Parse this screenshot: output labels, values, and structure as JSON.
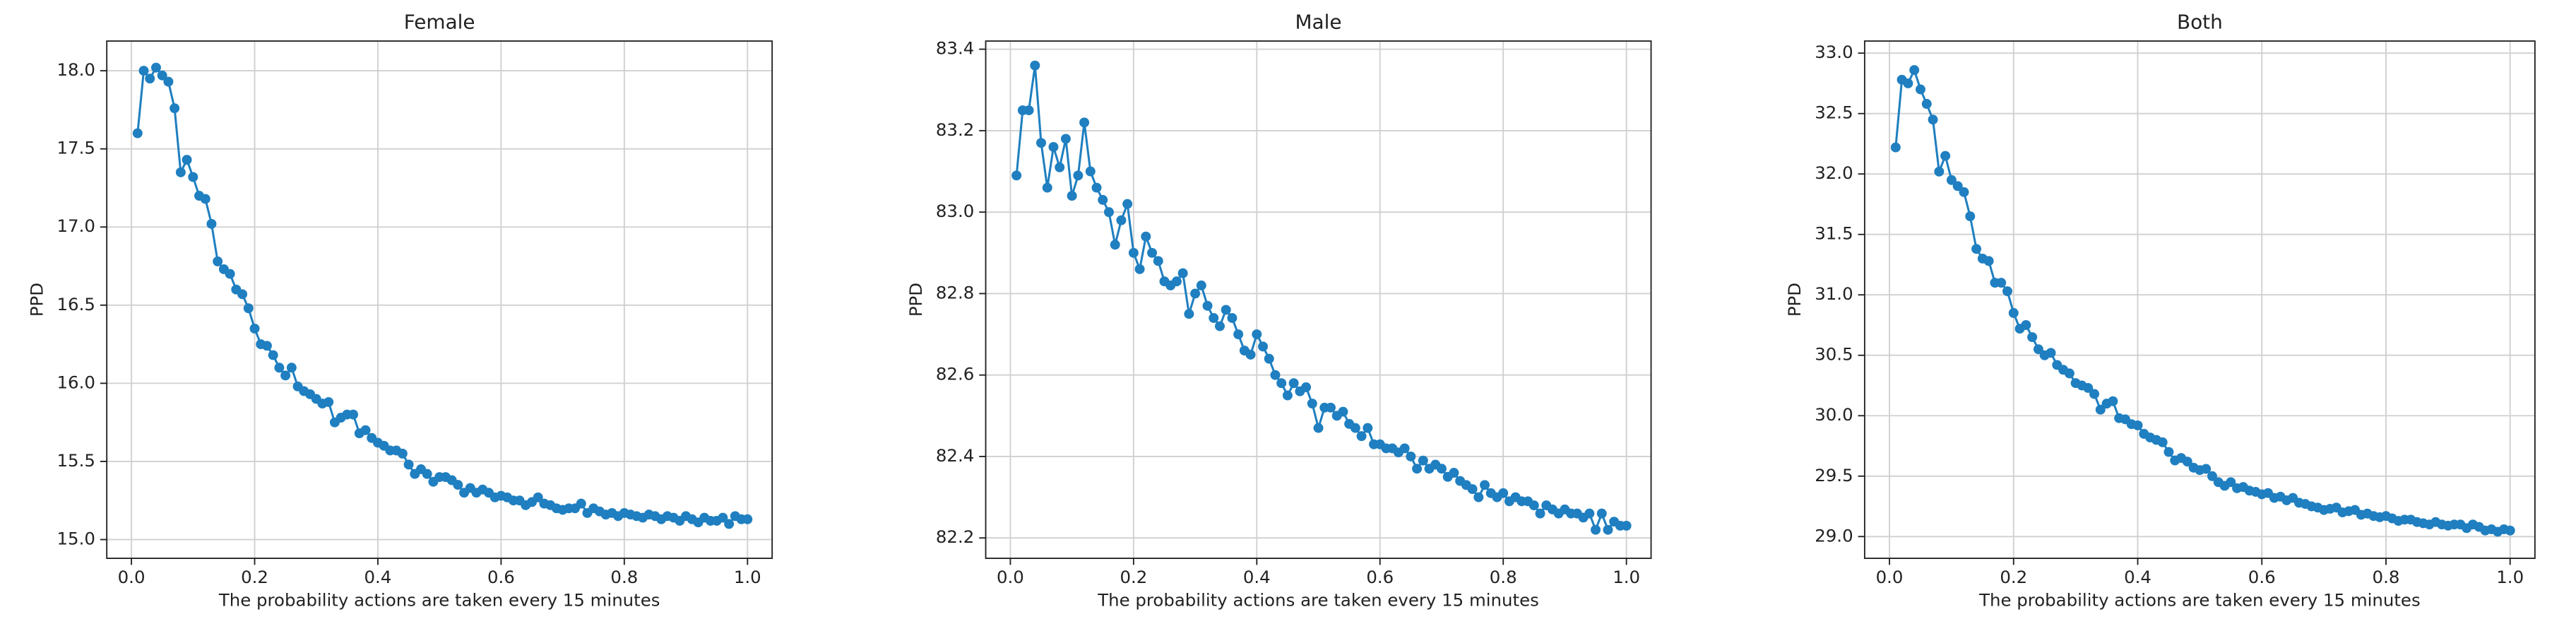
{
  "chart_data": [
    {
      "type": "line",
      "title": "Female",
      "x_label": "The probability actions are taken every 15 minutes",
      "y_label": "PPD",
      "color": "#1f7fc0",
      "grid": true,
      "x": [
        0.01,
        0.02,
        0.03,
        0.04,
        0.05,
        0.06,
        0.07,
        0.08,
        0.09,
        0.1,
        0.11,
        0.12,
        0.13,
        0.14,
        0.15,
        0.16,
        0.17,
        0.18,
        0.19,
        0.2,
        0.21,
        0.22,
        0.23,
        0.24,
        0.25,
        0.26,
        0.27,
        0.28,
        0.29,
        0.3,
        0.31,
        0.32,
        0.33,
        0.34,
        0.35,
        0.36,
        0.37,
        0.38,
        0.39,
        0.4,
        0.41,
        0.42,
        0.43,
        0.44,
        0.45,
        0.46,
        0.47,
        0.48,
        0.49,
        0.5,
        0.51,
        0.52,
        0.53,
        0.54,
        0.55,
        0.56,
        0.57,
        0.58,
        0.59,
        0.6,
        0.61,
        0.62,
        0.63,
        0.64,
        0.65,
        0.66,
        0.67,
        0.68,
        0.69,
        0.7,
        0.71,
        0.72,
        0.73,
        0.74,
        0.75,
        0.76,
        0.77,
        0.78,
        0.79,
        0.8,
        0.81,
        0.82,
        0.83,
        0.84,
        0.85,
        0.86,
        0.87,
        0.88,
        0.89,
        0.9,
        0.91,
        0.92,
        0.93,
        0.94,
        0.95,
        0.96,
        0.97,
        0.98,
        0.99,
        1.0
      ],
      "values": [
        17.6,
        18.0,
        17.95,
        18.02,
        17.97,
        17.93,
        17.76,
        17.35,
        17.43,
        17.32,
        17.2,
        17.18,
        17.02,
        16.78,
        16.73,
        16.7,
        16.6,
        16.57,
        16.48,
        16.35,
        16.25,
        16.24,
        16.18,
        16.1,
        16.05,
        16.1,
        15.98,
        15.95,
        15.93,
        15.9,
        15.87,
        15.88,
        15.75,
        15.78,
        15.8,
        15.8,
        15.68,
        15.7,
        15.65,
        15.62,
        15.6,
        15.57,
        15.57,
        15.55,
        15.48,
        15.42,
        15.45,
        15.42,
        15.37,
        15.4,
        15.4,
        15.38,
        15.35,
        15.3,
        15.33,
        15.3,
        15.32,
        15.3,
        15.27,
        15.28,
        15.27,
        15.25,
        15.25,
        15.22,
        15.24,
        15.27,
        15.23,
        15.22,
        15.2,
        15.19,
        15.2,
        15.2,
        15.23,
        15.17,
        15.2,
        15.18,
        15.16,
        15.17,
        15.15,
        15.17,
        15.16,
        15.15,
        15.14,
        15.16,
        15.15,
        15.13,
        15.15,
        15.14,
        15.12,
        15.15,
        15.13,
        15.11,
        15.14,
        15.12,
        15.12,
        15.14,
        15.1,
        15.15,
        15.13,
        15.13
      ],
      "xlim": [
        -0.04,
        1.04
      ],
      "xticks": [
        {
          "value": 0,
          "label": "0.0"
        },
        0.2,
        0.4,
        0.6,
        0.8,
        {
          "value": 1,
          "label": "1.0"
        }
      ],
      "ylim": [
        14.88,
        18.19
      ],
      "yticks": [
        {
          "value": 15,
          "label": "15.0"
        },
        15.5,
        {
          "value": 16,
          "label": "16.0"
        },
        16.5,
        {
          "value": 17,
          "label": "17.0"
        },
        17.5,
        {
          "value": 18,
          "label": "18.0"
        }
      ]
    },
    {
      "type": "line",
      "title": "Male",
      "x_label": "The probability actions are taken every 15 minutes",
      "y_label": "PPD",
      "color": "#1f7fc0",
      "grid": true,
      "x": [
        0.01,
        0.02,
        0.03,
        0.04,
        0.05,
        0.06,
        0.07,
        0.08,
        0.09,
        0.1,
        0.11,
        0.12,
        0.13,
        0.14,
        0.15,
        0.16,
        0.17,
        0.18,
        0.19,
        0.2,
        0.21,
        0.22,
        0.23,
        0.24,
        0.25,
        0.26,
        0.27,
        0.28,
        0.29,
        0.3,
        0.31,
        0.32,
        0.33,
        0.34,
        0.35,
        0.36,
        0.37,
        0.38,
        0.39,
        0.4,
        0.41,
        0.42,
        0.43,
        0.44,
        0.45,
        0.46,
        0.47,
        0.48,
        0.49,
        0.5,
        0.51,
        0.52,
        0.53,
        0.54,
        0.55,
        0.56,
        0.57,
        0.58,
        0.59,
        0.6,
        0.61,
        0.62,
        0.63,
        0.64,
        0.65,
        0.66,
        0.67,
        0.68,
        0.69,
        0.7,
        0.71,
        0.72,
        0.73,
        0.74,
        0.75,
        0.76,
        0.77,
        0.78,
        0.79,
        0.8,
        0.81,
        0.82,
        0.83,
        0.84,
        0.85,
        0.86,
        0.87,
        0.88,
        0.89,
        0.9,
        0.91,
        0.92,
        0.93,
        0.94,
        0.95,
        0.96,
        0.97,
        0.98,
        0.99,
        1.0
      ],
      "values": [
        83.09,
        83.25,
        83.25,
        83.36,
        83.17,
        83.06,
        83.16,
        83.11,
        83.18,
        83.04,
        83.09,
        83.22,
        83.1,
        83.06,
        83.03,
        83.0,
        82.92,
        82.98,
        83.02,
        82.9,
        82.86,
        82.94,
        82.9,
        82.88,
        82.83,
        82.82,
        82.83,
        82.85,
        82.75,
        82.8,
        82.82,
        82.77,
        82.74,
        82.72,
        82.76,
        82.74,
        82.7,
        82.66,
        82.65,
        82.7,
        82.67,
        82.64,
        82.6,
        82.58,
        82.55,
        82.58,
        82.56,
        82.57,
        82.53,
        82.47,
        82.52,
        82.52,
        82.5,
        82.51,
        82.48,
        82.47,
        82.45,
        82.47,
        82.43,
        82.43,
        82.42,
        82.42,
        82.41,
        82.42,
        82.4,
        82.37,
        82.39,
        82.37,
        82.38,
        82.37,
        82.35,
        82.36,
        82.34,
        82.33,
        82.32,
        82.3,
        82.33,
        82.31,
        82.3,
        82.31,
        82.29,
        82.3,
        82.29,
        82.29,
        82.28,
        82.26,
        82.28,
        82.27,
        82.26,
        82.27,
        82.26,
        82.26,
        82.25,
        82.26,
        82.22,
        82.26,
        82.22,
        82.24,
        82.23,
        82.23
      ],
      "xlim": [
        -0.04,
        1.04
      ],
      "xticks": [
        {
          "value": 0,
          "label": "0.0"
        },
        0.2,
        0.4,
        0.6,
        0.8,
        {
          "value": 1,
          "label": "1.0"
        }
      ],
      "ylim": [
        82.15,
        83.42
      ],
      "yticks": [
        82.2,
        82.4,
        82.6,
        82.8,
        {
          "value": 83,
          "label": "83.0"
        },
        83.2,
        83.4
      ]
    },
    {
      "type": "line",
      "title": "Both",
      "x_label": "The probability actions are taken every 15 minutes",
      "y_label": "PPD",
      "color": "#1f7fc0",
      "grid": true,
      "x": [
        0.01,
        0.02,
        0.03,
        0.04,
        0.05,
        0.06,
        0.07,
        0.08,
        0.09,
        0.1,
        0.11,
        0.12,
        0.13,
        0.14,
        0.15,
        0.16,
        0.17,
        0.18,
        0.19,
        0.2,
        0.21,
        0.22,
        0.23,
        0.24,
        0.25,
        0.26,
        0.27,
        0.28,
        0.29,
        0.3,
        0.31,
        0.32,
        0.33,
        0.34,
        0.35,
        0.36,
        0.37,
        0.38,
        0.39,
        0.4,
        0.41,
        0.42,
        0.43,
        0.44,
        0.45,
        0.46,
        0.47,
        0.48,
        0.49,
        0.5,
        0.51,
        0.52,
        0.53,
        0.54,
        0.55,
        0.56,
        0.57,
        0.58,
        0.59,
        0.6,
        0.61,
        0.62,
        0.63,
        0.64,
        0.65,
        0.66,
        0.67,
        0.68,
        0.69,
        0.7,
        0.71,
        0.72,
        0.73,
        0.74,
        0.75,
        0.76,
        0.77,
        0.78,
        0.79,
        0.8,
        0.81,
        0.82,
        0.83,
        0.84,
        0.85,
        0.86,
        0.87,
        0.88,
        0.89,
        0.9,
        0.91,
        0.92,
        0.93,
        0.94,
        0.95,
        0.96,
        0.97,
        0.98,
        0.99,
        1.0
      ],
      "values": [
        32.22,
        32.78,
        32.75,
        32.86,
        32.7,
        32.58,
        32.45,
        32.02,
        32.15,
        31.95,
        31.9,
        31.85,
        31.65,
        31.38,
        31.3,
        31.28,
        31.1,
        31.1,
        31.03,
        30.85,
        30.72,
        30.75,
        30.65,
        30.55,
        30.5,
        30.52,
        30.42,
        30.38,
        30.35,
        30.27,
        30.25,
        30.23,
        30.18,
        30.05,
        30.1,
        30.12,
        29.98,
        29.97,
        29.93,
        29.92,
        29.85,
        29.82,
        29.8,
        29.78,
        29.7,
        29.63,
        29.65,
        29.62,
        29.57,
        29.55,
        29.56,
        29.5,
        29.45,
        29.42,
        29.45,
        29.4,
        29.41,
        29.38,
        29.37,
        29.35,
        29.36,
        29.32,
        29.33,
        29.3,
        29.32,
        29.28,
        29.27,
        29.25,
        29.24,
        29.22,
        29.23,
        29.24,
        29.2,
        29.21,
        29.22,
        29.18,
        29.19,
        29.17,
        29.16,
        29.17,
        29.15,
        29.13,
        29.14,
        29.14,
        29.12,
        29.11,
        29.1,
        29.12,
        29.1,
        29.09,
        29.1,
        29.1,
        29.07,
        29.1,
        29.08,
        29.05,
        29.06,
        29.04,
        29.06,
        29.05
      ],
      "xlim": [
        -0.04,
        1.04
      ],
      "xticks": [
        {
          "value": 0,
          "label": "0.0"
        },
        0.2,
        0.4,
        0.6,
        0.8,
        {
          "value": 1,
          "label": "1.0"
        }
      ],
      "ylim": [
        28.82,
        33.1
      ],
      "yticks": [
        {
          "value": 29,
          "label": "29.0"
        },
        29.5,
        {
          "value": 30,
          "label": "30.0"
        },
        30.5,
        {
          "value": 31,
          "label": "31.0"
        },
        31.5,
        {
          "value": 32,
          "label": "32.0"
        },
        32.5,
        {
          "value": 33,
          "label": "33.0"
        }
      ]
    }
  ]
}
